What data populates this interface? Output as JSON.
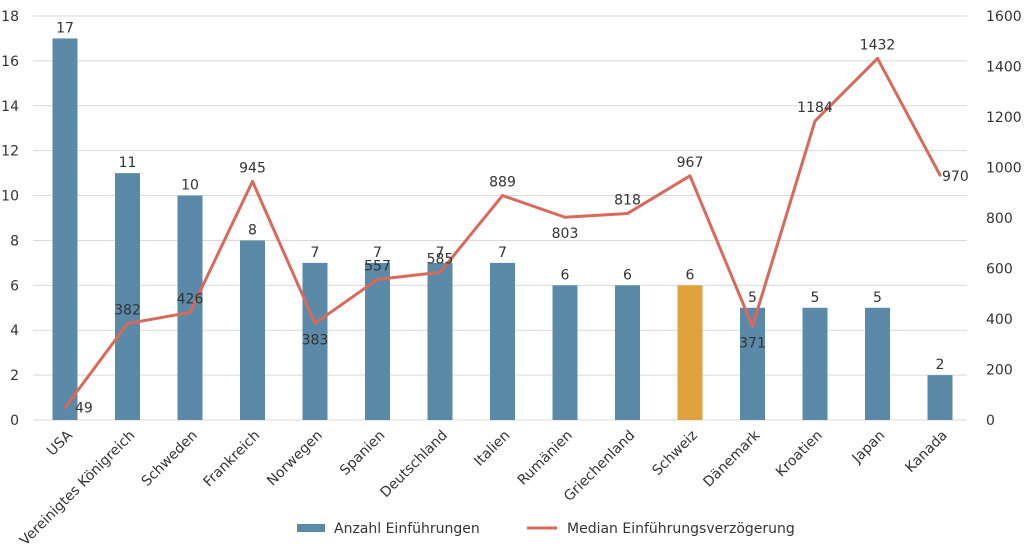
{
  "chart_data": {
    "type": "bar",
    "categories": [
      "USA",
      "Vereinigtes Königreich",
      "Schweden",
      "Frankreich",
      "Norwegen",
      "Spanien",
      "Deutschland",
      "Italien",
      "Rumänien",
      "Griechenland",
      "Schweiz",
      "Dänemark",
      "Kroatien",
      "Japan",
      "Kanada"
    ],
    "series": [
      {
        "name": "Anzahl Einführungen",
        "type": "bar",
        "axis": "left",
        "color": "#5b8aa8",
        "highlight": {
          "category": "Schweiz",
          "color": "#e0a23c"
        },
        "values": [
          17,
          11,
          10,
          8,
          7,
          7,
          7,
          7,
          6,
          6,
          6,
          5,
          5,
          5,
          2
        ]
      },
      {
        "name": "Median Einführungsverzögerung",
        "type": "line",
        "axis": "right",
        "color": "#d9695a",
        "values": [
          49,
          382,
          426,
          945,
          383,
          557,
          585,
          889,
          803,
          818,
          967,
          371,
          1184,
          1432,
          970
        ]
      }
    ],
    "y_left": {
      "min": 0,
      "max": 18,
      "ticks": [
        "0",
        "2",
        "4",
        "6",
        "8",
        "10",
        "12",
        "14",
        "16",
        "18"
      ]
    },
    "y_right": {
      "min": 0,
      "max": 1600,
      "ticks": [
        "0",
        "200",
        "400",
        "600",
        "800",
        "1000",
        "1200",
        "1400",
        "1600"
      ]
    },
    "grid": true,
    "legend": "bottom-center",
    "bar_labels": [
      "17",
      "11",
      "10",
      "8",
      "7",
      "7",
      "7",
      "7",
      "6",
      "6",
      "6",
      "5",
      "5",
      "5",
      "2"
    ],
    "line_labels": [
      "49",
      "382",
      "426",
      "945",
      "383",
      "557",
      "585",
      "889",
      "803",
      "818",
      "967",
      "371",
      "1184",
      "1432",
      "970"
    ]
  }
}
